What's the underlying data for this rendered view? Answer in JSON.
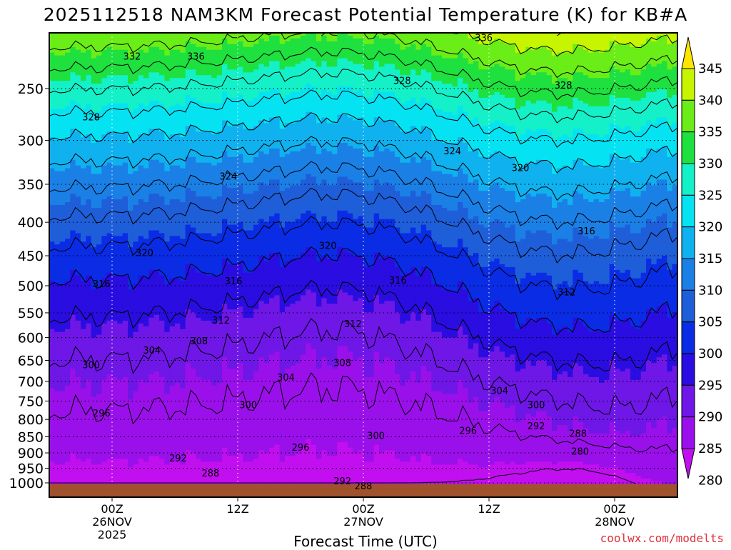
{
  "title": "2025112518 NAM3KM Forecast Potential Temperature (K) for KB#A",
  "credit": "coolwx.com/modelts",
  "colors": {
    "ground": "#a0522d",
    "colorbar": [
      {
        "level": 280,
        "color": "#c10fef"
      },
      {
        "level": 285,
        "color": "#9a10ea"
      },
      {
        "level": 290,
        "color": "#6e17e6"
      },
      {
        "level": 295,
        "color": "#2a0de0"
      },
      {
        "level": 300,
        "color": "#0a2ce5"
      },
      {
        "level": 305,
        "color": "#1f5ed9"
      },
      {
        "level": 310,
        "color": "#1b80e6"
      },
      {
        "level": 315,
        "color": "#10b1ef"
      },
      {
        "level": 320,
        "color": "#05e3f2"
      },
      {
        "level": 325,
        "color": "#14f0c8"
      },
      {
        "level": 330,
        "color": "#1ee03f"
      },
      {
        "level": 335,
        "color": "#6bed17"
      },
      {
        "level": 340,
        "color": "#c7f500"
      },
      {
        "level": 345,
        "color": "#ffe500"
      }
    ]
  },
  "chart_data": {
    "type": "heatmap",
    "title": "2025112518 NAM3KM Forecast Potential Temperature (K) for KB#A",
    "xlabel": "Forecast Time (UTC)",
    "ylabel": "",
    "y_scale": "log-pressure (inverted)",
    "ylim_hPa": [
      1000,
      200
    ],
    "y_ticks": [
      1000,
      950,
      900,
      850,
      800,
      750,
      700,
      650,
      600,
      550,
      500,
      450,
      400,
      350,
      300,
      250
    ],
    "x_ticks": [
      {
        "hour": 6,
        "label": [
          "00Z",
          "26NOV",
          "2025"
        ]
      },
      {
        "hour": 18,
        "label": [
          "12Z"
        ]
      },
      {
        "hour": 30,
        "label": [
          "00Z",
          "27NOV"
        ]
      },
      {
        "hour": 42,
        "label": [
          "12Z"
        ]
      },
      {
        "hour": 54,
        "label": [
          "00Z",
          "28NOV"
        ]
      }
    ],
    "xlim_hours": [
      0,
      60
    ],
    "colorbar_ticks": [
      280,
      285,
      290,
      295,
      300,
      305,
      310,
      315,
      320,
      325,
      330,
      335,
      340,
      345
    ],
    "colorbar_range": [
      280,
      345
    ],
    "contour_interval_K": 4,
    "contour_labels": [
      {
        "value": 336,
        "hour": 41.5,
        "p": 209
      },
      {
        "value": 332,
        "hour": 7.9,
        "p": 223
      },
      {
        "value": 336,
        "hour": 14.0,
        "p": 223
      },
      {
        "value": 328,
        "hour": 33.7,
        "p": 243
      },
      {
        "value": 328,
        "hour": 49.1,
        "p": 247
      },
      {
        "value": 328,
        "hour": 4.0,
        "p": 276
      },
      {
        "value": 324,
        "hour": 38.5,
        "p": 311
      },
      {
        "value": 320,
        "hour": 45.0,
        "p": 330
      },
      {
        "value": 324,
        "hour": 17.1,
        "p": 340
      },
      {
        "value": 316,
        "hour": 51.3,
        "p": 412
      },
      {
        "value": 320,
        "hour": 26.6,
        "p": 434
      },
      {
        "value": 320,
        "hour": 9.1,
        "p": 445
      },
      {
        "value": 316,
        "hour": 5.0,
        "p": 496
      },
      {
        "value": 316,
        "hour": 17.6,
        "p": 491
      },
      {
        "value": 316,
        "hour": 33.3,
        "p": 490
      },
      {
        "value": 312,
        "hour": 49.4,
        "p": 511
      },
      {
        "value": 312,
        "hour": 16.4,
        "p": 564
      },
      {
        "value": 312,
        "hour": 29.0,
        "p": 571
      },
      {
        "value": 308,
        "hour": 14.3,
        "p": 607
      },
      {
        "value": 304,
        "hour": 9.8,
        "p": 627
      },
      {
        "value": 308,
        "hour": 28.0,
        "p": 655
      },
      {
        "value": 300,
        "hour": 4.0,
        "p": 660
      },
      {
        "value": 304,
        "hour": 22.6,
        "p": 690
      },
      {
        "value": 304,
        "hour": 43.0,
        "p": 722
      },
      {
        "value": 300,
        "hour": 19.0,
        "p": 760
      },
      {
        "value": 300,
        "hour": 46.5,
        "p": 760
      },
      {
        "value": 296,
        "hour": 5.0,
        "p": 782
      },
      {
        "value": 292,
        "hour": 46.5,
        "p": 818
      },
      {
        "value": 296,
        "hour": 40.0,
        "p": 831
      },
      {
        "value": 288,
        "hour": 50.5,
        "p": 840
      },
      {
        "value": 300,
        "hour": 31.2,
        "p": 846
      },
      {
        "value": 296,
        "hour": 24.0,
        "p": 882
      },
      {
        "value": 280,
        "hour": 50.7,
        "p": 894
      },
      {
        "value": 292,
        "hour": 12.3,
        "p": 916
      },
      {
        "value": 288,
        "hour": 15.4,
        "p": 965
      },
      {
        "value": 292,
        "hour": 28.0,
        "p": 992
      },
      {
        "value": 288,
        "hour": 30.0,
        "p": 1010
      }
    ]
  }
}
